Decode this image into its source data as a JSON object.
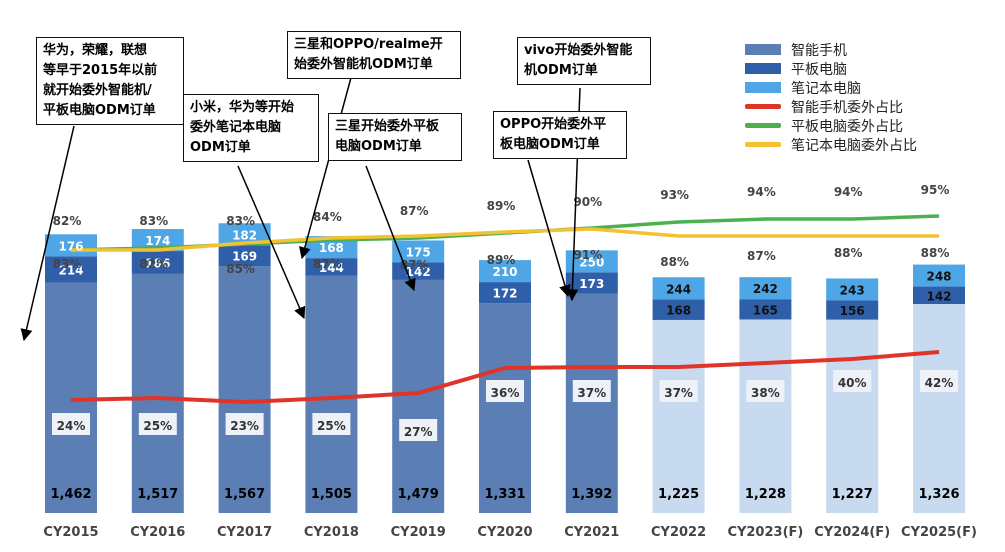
{
  "chart_data": {
    "type": "bar",
    "categories": [
      "CY2015",
      "CY2016",
      "CY2017",
      "CY2018",
      "CY2019",
      "CY2020",
      "CY2021",
      "CY2022",
      "CY2023(F)",
      "CY2024(F)",
      "CY2025(F)"
    ],
    "series": [
      {
        "name": "智能手机",
        "values": [
          1462,
          1517,
          1567,
          1505,
          1479,
          1331,
          1392,
          1225,
          1228,
          1227,
          1326
        ],
        "labels": [
          "1,462",
          "1,517",
          "1,567",
          "1,505",
          "1,479",
          "1,331",
          "1,392",
          "1,225",
          "1,228",
          "1,227",
          "1,326"
        ],
        "color": "#5b7fb5",
        "forecast_color": "#c8daf0"
      },
      {
        "name": "平板电脑",
        "values": [
          214,
          186,
          169,
          144,
          142,
          172,
          173,
          168,
          165,
          156,
          142
        ],
        "color": "#2e5fa8"
      },
      {
        "name": "笔记本电脑",
        "values": [
          176,
          174,
          182,
          168,
          175,
          210,
          250,
          244,
          242,
          243,
          248
        ],
        "color": "#4ea6e6"
      },
      {
        "name": "智能手机委外占比",
        "values": [
          24,
          25,
          23,
          25,
          27,
          36,
          37,
          37,
          38,
          40,
          42
        ],
        "color": "#e03428"
      },
      {
        "name": "平板电脑委外占比",
        "values": [
          83,
          82,
          85,
          87,
          87,
          89,
          91,
          88,
          87,
          88,
          88
        ],
        "color": "#4caf50"
      },
      {
        "name": "笔记本电脑委外占比",
        "values": [
          82,
          83,
          83,
          84,
          87,
          89,
          90,
          93,
          94,
          94,
          95
        ],
        "color": "#f2c233"
      }
    ],
    "ylim": [
      0,
      2100
    ],
    "pct_ylim": [
      0,
      100
    ]
  },
  "callouts": [
    {
      "text": "华为，荣耀，联想\n等早于2015年以前\n就开始委外智能机/\n平板电脑ODM订单"
    },
    {
      "text": "小米，华为等开始\n委外笔记本电脑\nODM订单"
    },
    {
      "text": "三星和OPPO/realme开\n始委外智能机ODM订单"
    },
    {
      "text": "三星开始委外平板\n电脑ODM订单"
    },
    {
      "text": "vivo开始委外智能\n机ODM订单"
    },
    {
      "text": "OPPO开始委外平\n板电脑ODM订单"
    }
  ]
}
